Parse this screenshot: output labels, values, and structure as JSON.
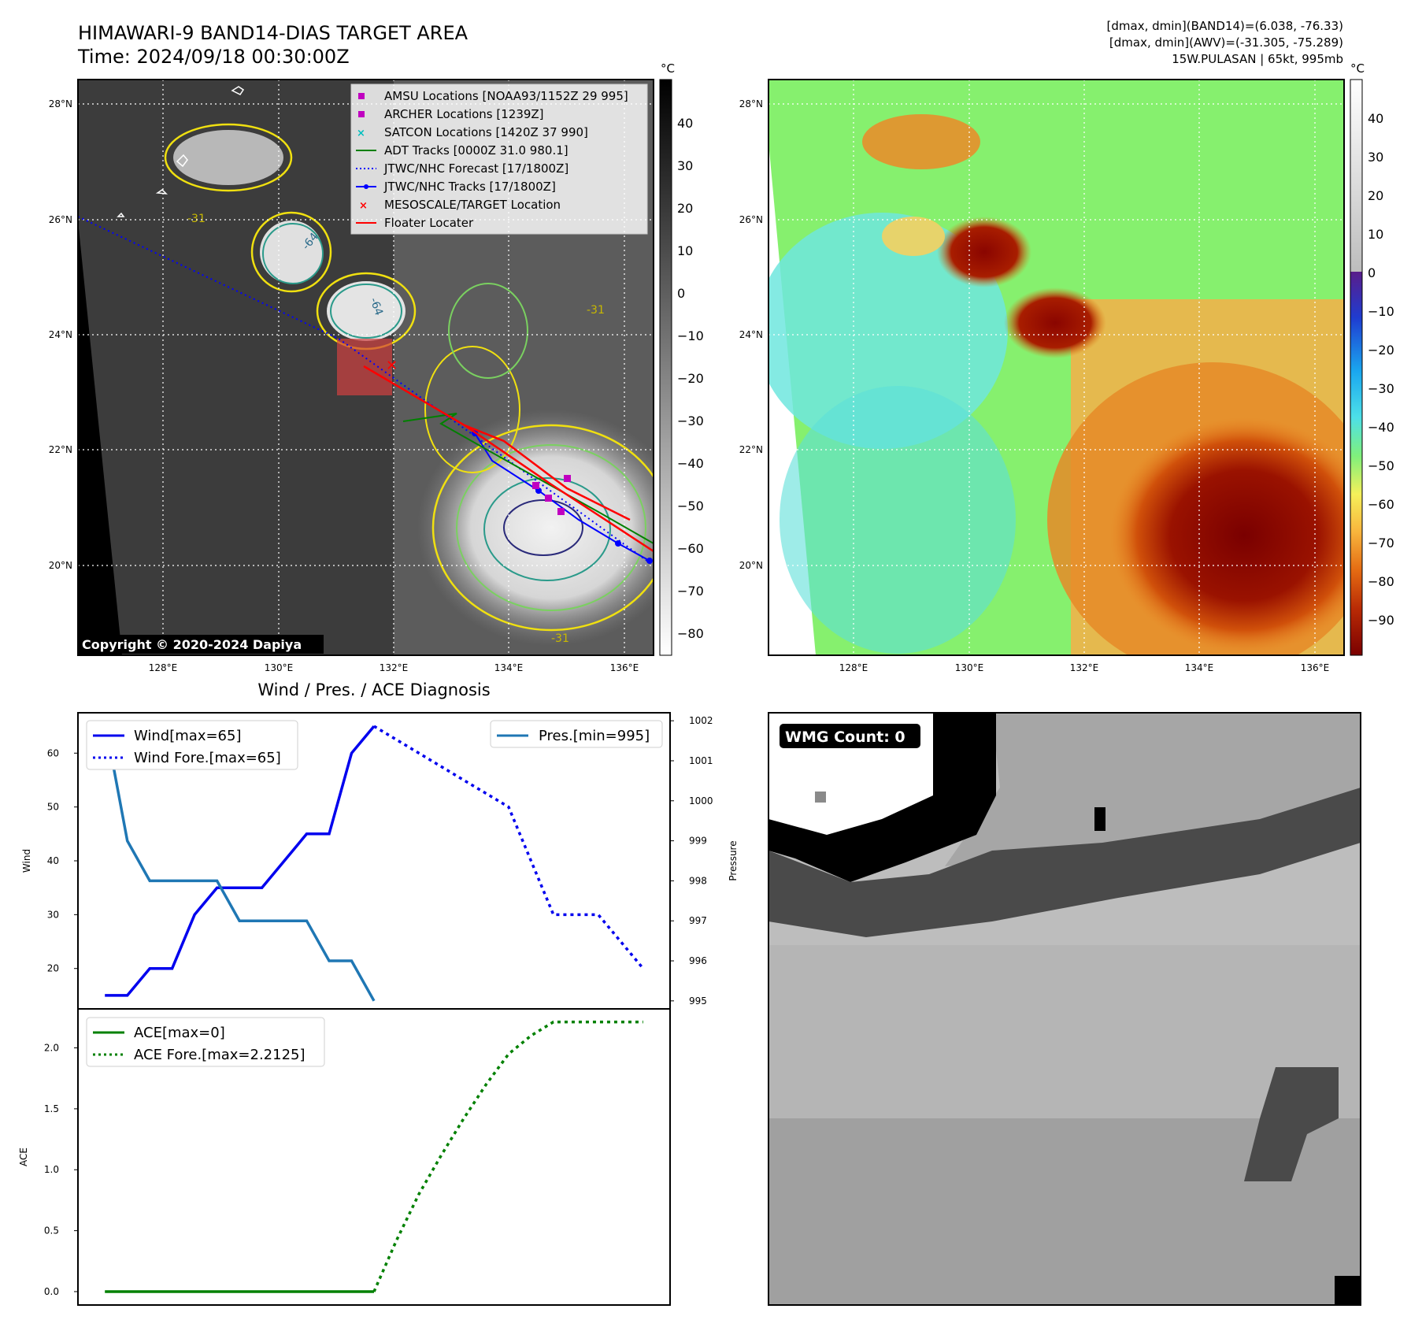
{
  "header": {
    "title": "HIMAWARI-9 BAND14-DIAS TARGET AREA",
    "time": "Time: 2024/09/18 00:30:00Z",
    "info_band14": "[dmax, dmin](BAND14)=(6.038, -76.33)",
    "info_awv": "[dmax, dmin](AWV)=(-31.305, -75.289)",
    "info_storm": "15W.PULASAN | 65kt, 995mb"
  },
  "map": {
    "lat_ticks": [
      "28°N",
      "26°N",
      "24°N",
      "22°N",
      "20°N"
    ],
    "lon_ticks": [
      "128°E",
      "130°E",
      "132°E",
      "134°E",
      "136°E"
    ],
    "copyright": "Copyright © 2020-2024 Dapiya",
    "contour_labels": [
      "-64",
      "-64",
      "-31",
      "-31",
      "-31"
    ],
    "legend": [
      {
        "label": "AMSU Locations [NOAA93/1152Z 29 995]",
        "color": "#c000c0",
        "marker": "square"
      },
      {
        "label": "ARCHER Locations [1239Z]",
        "color": "#c000c0",
        "marker": "square"
      },
      {
        "label": "SATCON Locations [1420Z 37 990]",
        "color": "#00bfbf",
        "marker": "x"
      },
      {
        "label": "ADT Tracks [0000Z 31.0 980.1]",
        "color": "#008000",
        "marker": "line"
      },
      {
        "label": "JTWC/NHC Forecast [17/1800Z]",
        "color": "#0000ff",
        "marker": "dotted"
      },
      {
        "label": "JTWC/NHC Tracks [17/1800Z]",
        "color": "#0000ff",
        "marker": "line-dot"
      },
      {
        "label": "MESOSCALE/TARGET Location",
        "color": "#ff0000",
        "marker": "x"
      },
      {
        "label": "Floater Locater",
        "color": "#ff0000",
        "marker": "line"
      }
    ],
    "colorbar_gray": {
      "unit": "°C",
      "ticks": [
        "40",
        "30",
        "20",
        "10",
        "0",
        "−10",
        "−20",
        "−30",
        "−40",
        "−50",
        "−60",
        "−70",
        "−80"
      ]
    },
    "colorbar_awv": {
      "unit": "°C",
      "ticks": [
        "40",
        "30",
        "20",
        "10",
        "0",
        "−10",
        "−20",
        "−30",
        "−40",
        "−50",
        "−60",
        "−70",
        "−80",
        "−90"
      ]
    }
  },
  "chart_data": [
    {
      "type": "line",
      "title": "Wind / Pres. / ACE Diagnosis",
      "xlabel": "",
      "ylabel": "Wind",
      "ylabel_right": "Pressure",
      "ylim": [
        12.5,
        67.5
      ],
      "ylim_right": [
        994.8,
        1002.2
      ],
      "yticks": [
        20,
        30,
        40,
        50,
        60
      ],
      "yticks_right": [
        995,
        996,
        997,
        998,
        999,
        1000,
        1001,
        1002
      ],
      "x": [
        0,
        1,
        2,
        3,
        4,
        5,
        6,
        7,
        8,
        9,
        10,
        11,
        12,
        13,
        14,
        15,
        16,
        17,
        18,
        19,
        20,
        21,
        22,
        23,
        24
      ],
      "xlim": [
        -1.2,
        25.2
      ],
      "series": [
        {
          "name": "Wind[max=65]",
          "axis": "left",
          "style": "solid",
          "color": "#0000ee",
          "x": [
            0,
            1,
            2,
            3,
            4,
            5,
            6,
            7,
            8,
            9,
            10,
            11,
            12
          ],
          "values": [
            15,
            15,
            20,
            20,
            30,
            35,
            35,
            35,
            40,
            45,
            45,
            60,
            65
          ]
        },
        {
          "name": "Wind Fore.[max=65]",
          "axis": "left",
          "style": "dotted",
          "color": "#0000ee",
          "x": [
            12,
            13,
            14,
            15,
            16,
            17,
            18,
            19,
            20,
            21,
            22,
            23,
            24
          ],
          "values": [
            65,
            62.5,
            60,
            57.5,
            55,
            52.5,
            50,
            40,
            30,
            30,
            30,
            25,
            20
          ]
        },
        {
          "name": "Pres.[min=995]",
          "axis": "right",
          "style": "solid",
          "color": "#1f77b4",
          "x": [
            0,
            1,
            2,
            3,
            4,
            5,
            6,
            7,
            8,
            9,
            10,
            11,
            12
          ],
          "values": [
            1002,
            999,
            998,
            998,
            998,
            998,
            997,
            997,
            997,
            997,
            996,
            996,
            995
          ]
        }
      ]
    },
    {
      "type": "line",
      "ylabel": "ACE",
      "ylim": [
        -0.11,
        2.32
      ],
      "yticks": [
        "0.0",
        "0.5",
        "1.0",
        "1.5",
        "2.0"
      ],
      "xlim": [
        -1.2,
        25.2
      ],
      "series": [
        {
          "name": "ACE[max=0]",
          "style": "solid",
          "color": "#008000",
          "x": [
            0,
            1,
            2,
            3,
            4,
            5,
            6,
            7,
            8,
            9,
            10,
            11,
            12
          ],
          "values": [
            0,
            0,
            0,
            0,
            0,
            0,
            0,
            0,
            0,
            0,
            0,
            0,
            0
          ]
        },
        {
          "name": "ACE Fore.[max=2.2125]",
          "style": "dotted",
          "color": "#008000",
          "x": [
            12,
            13,
            14,
            15,
            16,
            17,
            18,
            19,
            20,
            21,
            22,
            23,
            24
          ],
          "values": [
            0,
            0.42,
            0.8,
            1.12,
            1.42,
            1.7,
            1.95,
            2.1,
            2.2125,
            2.2125,
            2.2125,
            2.2125,
            2.2125
          ]
        }
      ]
    }
  ],
  "wmg": {
    "label": "WMG Count: 0"
  }
}
